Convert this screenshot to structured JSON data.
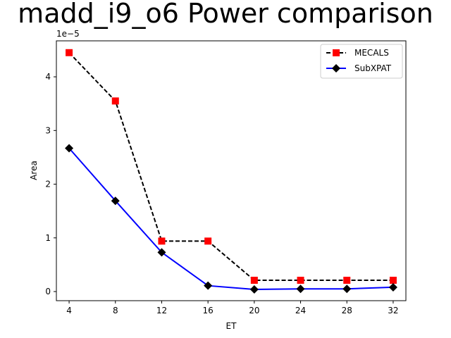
{
  "chart_data": {
    "type": "line",
    "title": "madd_i9_o6 Power comparison",
    "xlabel": "ET",
    "ylabel": "Area",
    "y_offset_label": "1e−5",
    "x": [
      4,
      8,
      12,
      16,
      20,
      24,
      28,
      32
    ],
    "x_ticks": [
      "4",
      "8",
      "12",
      "16",
      "20",
      "24",
      "28",
      "32"
    ],
    "y_ticks": [
      "0",
      "1",
      "2",
      "3",
      "4"
    ],
    "y_tick_values": [
      0,
      1e-05,
      2e-05,
      3e-05,
      4e-05
    ],
    "xlim": [
      2.9,
      33.1
    ],
    "ylim": [
      -1.7e-06,
      4.67e-05
    ],
    "grid": false,
    "legend_position": "upper-right",
    "series": [
      {
        "name": "MECALS",
        "color": "#000000",
        "marker": "square",
        "marker_color": "#ff0000",
        "line_style": "dashed",
        "values": [
          4.45e-05,
          3.55e-05,
          9.4e-06,
          9.4e-06,
          2.1e-06,
          2.1e-06,
          2.1e-06,
          2.1e-06
        ]
      },
      {
        "name": "SubXPAT",
        "color": "#0000ff",
        "marker": "diamond",
        "marker_color": "#000000",
        "line_style": "solid",
        "values": [
          2.67e-05,
          1.69e-05,
          7.3e-06,
          1.1e-06,
          4e-07,
          5e-07,
          5e-07,
          8e-07
        ]
      }
    ]
  }
}
